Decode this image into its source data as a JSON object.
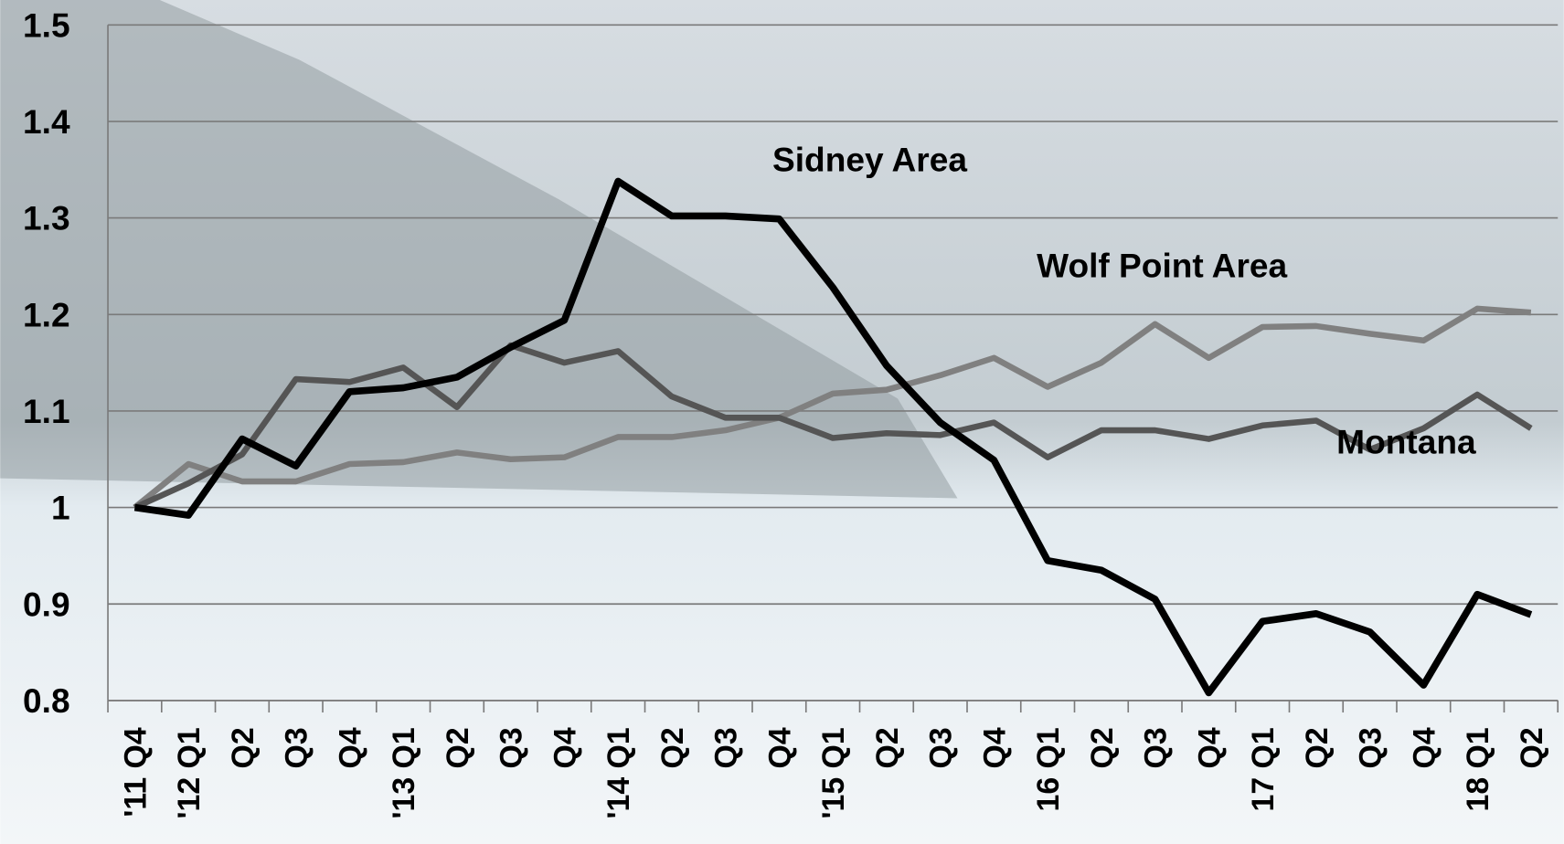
{
  "chart_data": {
    "type": "line",
    "categories": [
      "'11 Q4",
      "'12 Q1",
      "Q2",
      "Q3",
      "Q4",
      "'13 Q1",
      "Q2",
      "Q3",
      "Q4",
      "'14 Q1",
      "Q2",
      "Q3",
      "Q4",
      "'15 Q1",
      "Q2",
      "Q3",
      "Q4",
      "16 Q1",
      "Q2",
      "Q3",
      "Q4",
      "17 Q1",
      "Q2",
      "Q3",
      "Q4",
      "18 Q1",
      "Q2"
    ],
    "series": [
      {
        "name": "Sidney Area",
        "color": "#000000",
        "values": [
          1.0,
          0.992,
          1.071,
          1.043,
          1.12,
          1.124,
          1.135,
          1.166,
          1.194,
          1.338,
          1.302,
          1.302,
          1.299,
          1.228,
          1.147,
          1.088,
          1.049,
          0.945,
          0.935,
          0.905,
          0.808,
          0.882,
          0.89,
          0.871,
          0.816,
          0.91,
          0.889
        ]
      },
      {
        "name": "Montana",
        "color": "#555555",
        "values": [
          1.0,
          1.025,
          1.055,
          1.133,
          1.13,
          1.145,
          1.104,
          1.168,
          1.15,
          1.162,
          1.115,
          1.093,
          1.093,
          1.072,
          1.077,
          1.075,
          1.088,
          1.052,
          1.08,
          1.08,
          1.071,
          1.085,
          1.09,
          1.06,
          1.082,
          1.117,
          1.082
        ]
      },
      {
        "name": "Wolf Point Area",
        "color": "#808080",
        "values": [
          1.0,
          1.045,
          1.027,
          1.027,
          1.045,
          1.047,
          1.057,
          1.05,
          1.052,
          1.073,
          1.073,
          1.08,
          1.093,
          1.118,
          1.122,
          1.137,
          1.155,
          1.125,
          1.15,
          1.19,
          1.155,
          1.187,
          1.188,
          1.18,
          1.173,
          1.206,
          1.202
        ]
      }
    ],
    "ylim": [
      0.8,
      1.5
    ],
    "yticks": [
      0.8,
      0.9,
      1,
      1.1,
      1.2,
      1.3,
      1.4,
      1.5
    ],
    "grid": true
  }
}
